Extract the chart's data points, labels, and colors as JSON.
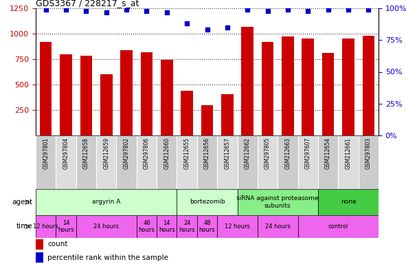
{
  "title": "GDS3367 / 228217_s_at",
  "samples": [
    "GSM297801",
    "GSM297804",
    "GSM212658",
    "GSM212659",
    "GSM297802",
    "GSM297806",
    "GSM212660",
    "GSM212655",
    "GSM212656",
    "GSM212657",
    "GSM212662",
    "GSM297805",
    "GSM212663",
    "GSM297607",
    "GSM212654",
    "GSM212661",
    "GSM297803"
  ],
  "counts": [
    920,
    800,
    785,
    600,
    840,
    820,
    745,
    440,
    295,
    405,
    1065,
    920,
    975,
    950,
    810,
    950,
    980
  ],
  "percentiles": [
    99,
    99,
    98,
    97,
    99,
    98,
    97,
    88,
    83,
    85,
    99,
    98,
    99,
    98,
    99,
    99,
    99
  ],
  "bar_color": "#cc0000",
  "dot_color": "#0000cc",
  "ylim_left": [
    0,
    1250
  ],
  "ylim_right": [
    0,
    100
  ],
  "yticks_left": [
    250,
    500,
    750,
    1000,
    1250
  ],
  "yticks_right": [
    0,
    25,
    50,
    75,
    100
  ],
  "agent_groups": [
    {
      "label": "argyrin A",
      "start": 0,
      "end": 7,
      "color": "#ccffcc"
    },
    {
      "label": "bortezomib",
      "start": 7,
      "end": 10,
      "color": "#ccffcc"
    },
    {
      "label": "siRNA against proteasome\nsubunits",
      "start": 10,
      "end": 14,
      "color": "#88ee88"
    },
    {
      "label": "none",
      "start": 14,
      "end": 17,
      "color": "#44cc44"
    }
  ],
  "time_groups": [
    {
      "label": "12 hours",
      "start": 0,
      "end": 1,
      "color": "#ee66ee"
    },
    {
      "label": "14\nhours",
      "start": 1,
      "end": 2,
      "color": "#ee66ee"
    },
    {
      "label": "24 hours",
      "start": 2,
      "end": 5,
      "color": "#ee66ee"
    },
    {
      "label": "48\nhours",
      "start": 5,
      "end": 6,
      "color": "#ee66ee"
    },
    {
      "label": "14\nhours",
      "start": 6,
      "end": 7,
      "color": "#ee66ee"
    },
    {
      "label": "24\nhours",
      "start": 7,
      "end": 8,
      "color": "#ee66ee"
    },
    {
      "label": "48\nhours",
      "start": 8,
      "end": 9,
      "color": "#ee66ee"
    },
    {
      "label": "12 hours",
      "start": 9,
      "end": 11,
      "color": "#ee66ee"
    },
    {
      "label": "24 hours",
      "start": 11,
      "end": 13,
      "color": "#ee66ee"
    },
    {
      "label": "control",
      "start": 13,
      "end": 17,
      "color": "#ee66ee"
    }
  ],
  "legend_count_color": "#cc0000",
  "legend_pct_color": "#0000cc",
  "tick_label_color_left": "#cc0000",
  "tick_label_color_right": "#0000cc"
}
